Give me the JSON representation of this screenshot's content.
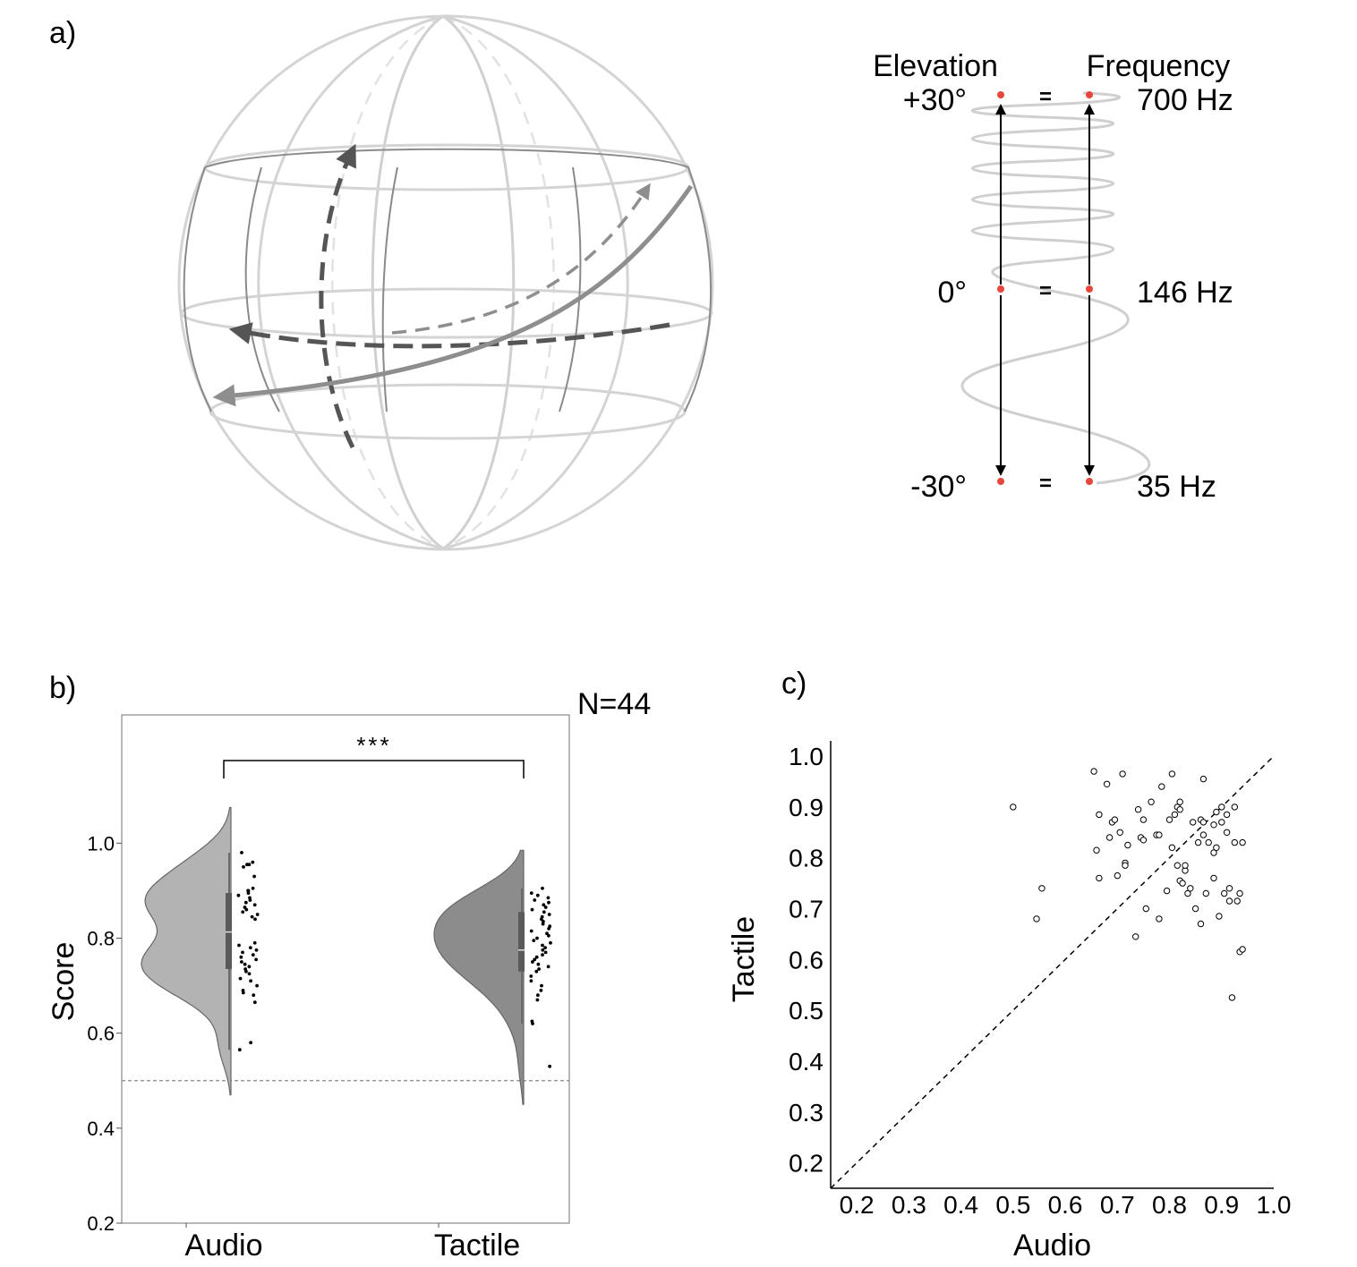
{
  "panels": {
    "a": {
      "label": "a)",
      "mapping": {
        "left_header": "Elevation",
        "right_header": "Frequency",
        "equals": "=",
        "rows": [
          {
            "elevation": "+30°",
            "frequency": "700 Hz"
          },
          {
            "elevation": "0°",
            "frequency": "146 Hz"
          },
          {
            "elevation": "-30°",
            "frequency": "35 Hz"
          }
        ]
      }
    },
    "b": {
      "label": "b)",
      "n_label": "N=44",
      "significance": "***"
    },
    "c": {
      "label": "c)"
    }
  },
  "colors": {
    "marker_red": "#e8453c",
    "audio_violin": "#b3b3b3",
    "tactile_violin": "#8c8c8c",
    "sphere_light": "#d4d4d4",
    "sphere_dark": "#8a8a8a",
    "path_dark": "#555555",
    "path_mid": "#8e8e8e"
  },
  "chart_data": [
    {
      "type": "violin",
      "panel": "b",
      "title": "",
      "xlabel": "",
      "ylabel": "Score",
      "categories": [
        "Audio",
        "Tactile"
      ],
      "ylim": [
        0.2,
        1.27
      ],
      "yticks": [
        0.2,
        0.4,
        0.6,
        0.8,
        1.0
      ],
      "ytick_labels": [
        "0.2",
        "0.4",
        "0.6",
        "0.8",
        "1.0"
      ],
      "chance_line": 0.5,
      "significance": "***",
      "n": 44,
      "series": [
        {
          "name": "Audio",
          "kde_range": [
            0.47,
            1.075
          ],
          "box": {
            "q1": 0.735,
            "median": 0.813,
            "q3": 0.895,
            "whisker_low": 0.565,
            "whisker_high": 0.98
          },
          "points": [
            0.98,
            0.96,
            0.955,
            0.955,
            0.95,
            0.93,
            0.905,
            0.9,
            0.9,
            0.895,
            0.89,
            0.885,
            0.88,
            0.875,
            0.87,
            0.865,
            0.86,
            0.855,
            0.85,
            0.845,
            0.84,
            0.79,
            0.785,
            0.78,
            0.775,
            0.77,
            0.765,
            0.76,
            0.755,
            0.75,
            0.745,
            0.74,
            0.735,
            0.73,
            0.725,
            0.715,
            0.71,
            0.7,
            0.69,
            0.685,
            0.68,
            0.665,
            0.58,
            0.565
          ]
        },
        {
          "name": "Tactile",
          "kde_range": [
            0.45,
            0.985
          ],
          "box": {
            "q1": 0.73,
            "median": 0.775,
            "q3": 0.855,
            "whisker_low": 0.62,
            "whisker_high": 0.905
          },
          "points": [
            0.905,
            0.895,
            0.89,
            0.885,
            0.88,
            0.875,
            0.87,
            0.865,
            0.86,
            0.855,
            0.85,
            0.845,
            0.84,
            0.835,
            0.83,
            0.825,
            0.82,
            0.815,
            0.81,
            0.805,
            0.8,
            0.795,
            0.79,
            0.785,
            0.78,
            0.775,
            0.77,
            0.765,
            0.76,
            0.755,
            0.75,
            0.745,
            0.74,
            0.735,
            0.73,
            0.72,
            0.71,
            0.7,
            0.69,
            0.68,
            0.67,
            0.625,
            0.62,
            0.53
          ]
        }
      ]
    },
    {
      "type": "scatter",
      "panel": "c",
      "title": "",
      "xlabel": "Audio",
      "ylabel": "Tactile",
      "xlim": [
        0.15,
        1.0
      ],
      "ylim": [
        0.15,
        1.03
      ],
      "xticks": [
        0.2,
        0.3,
        0.4,
        0.5,
        0.6,
        0.7,
        0.8,
        0.9,
        1.0
      ],
      "xtick_labels": [
        "0.2",
        "0.3",
        "0.4",
        "0.5",
        "0.6",
        "0.7",
        "0.8",
        "0.9",
        "1.0"
      ],
      "yticks": [
        0.2,
        0.3,
        0.4,
        0.5,
        0.6,
        0.7,
        0.8,
        0.9,
        1.0
      ],
      "ytick_labels": [
        "0.2",
        "0.3",
        "0.4",
        "0.5",
        "0.6",
        "0.7",
        "0.8",
        "0.9",
        "1.0"
      ],
      "reference_line": "y = x (dashed)",
      "points": [
        [
          0.5,
          0.9
        ],
        [
          0.545,
          0.68
        ],
        [
          0.555,
          0.74
        ],
        [
          0.655,
          0.97
        ],
        [
          0.66,
          0.815
        ],
        [
          0.665,
          0.76
        ],
        [
          0.665,
          0.885
        ],
        [
          0.68,
          0.945
        ],
        [
          0.685,
          0.84
        ],
        [
          0.69,
          0.87
        ],
        [
          0.695,
          0.875
        ],
        [
          0.7,
          0.765
        ],
        [
          0.705,
          0.85
        ],
        [
          0.71,
          0.965
        ],
        [
          0.715,
          0.79
        ],
        [
          0.715,
          0.785
        ],
        [
          0.72,
          0.825
        ],
        [
          0.735,
          0.645
        ],
        [
          0.74,
          0.895
        ],
        [
          0.745,
          0.84
        ],
        [
          0.75,
          0.875
        ],
        [
          0.75,
          0.835
        ],
        [
          0.755,
          0.7
        ],
        [
          0.765,
          0.91
        ],
        [
          0.775,
          0.845
        ],
        [
          0.78,
          0.845
        ],
        [
          0.78,
          0.68
        ],
        [
          0.785,
          0.94
        ],
        [
          0.795,
          0.735
        ],
        [
          0.8,
          0.875
        ],
        [
          0.805,
          0.965
        ],
        [
          0.805,
          0.82
        ],
        [
          0.81,
          0.885
        ],
        [
          0.815,
          0.785
        ],
        [
          0.815,
          0.9
        ],
        [
          0.82,
          0.91
        ],
        [
          0.82,
          0.895
        ],
        [
          0.82,
          0.755
        ],
        [
          0.825,
          0.75
        ],
        [
          0.83,
          0.775
        ],
        [
          0.83,
          0.785
        ],
        [
          0.835,
          0.73
        ],
        [
          0.84,
          0.74
        ],
        [
          0.845,
          0.87
        ],
        [
          0.85,
          0.7
        ],
        [
          0.855,
          0.83
        ],
        [
          0.86,
          0.875
        ],
        [
          0.86,
          0.67
        ],
        [
          0.865,
          0.955
        ],
        [
          0.865,
          0.87
        ],
        [
          0.865,
          0.845
        ],
        [
          0.87,
          0.73
        ],
        [
          0.875,
          0.83
        ],
        [
          0.885,
          0.865
        ],
        [
          0.885,
          0.76
        ],
        [
          0.885,
          0.81
        ],
        [
          0.89,
          0.89
        ],
        [
          0.89,
          0.82
        ],
        [
          0.895,
          0.685
        ],
        [
          0.9,
          0.87
        ],
        [
          0.9,
          0.9
        ],
        [
          0.905,
          0.73
        ],
        [
          0.91,
          0.85
        ],
        [
          0.91,
          0.885
        ],
        [
          0.915,
          0.715
        ],
        [
          0.915,
          0.74
        ],
        [
          0.92,
          0.525
        ],
        [
          0.925,
          0.9
        ],
        [
          0.925,
          0.83
        ],
        [
          0.93,
          0.715
        ],
        [
          0.935,
          0.73
        ],
        [
          0.935,
          0.615
        ],
        [
          0.94,
          0.62
        ],
        [
          0.94,
          0.83
        ]
      ]
    }
  ]
}
